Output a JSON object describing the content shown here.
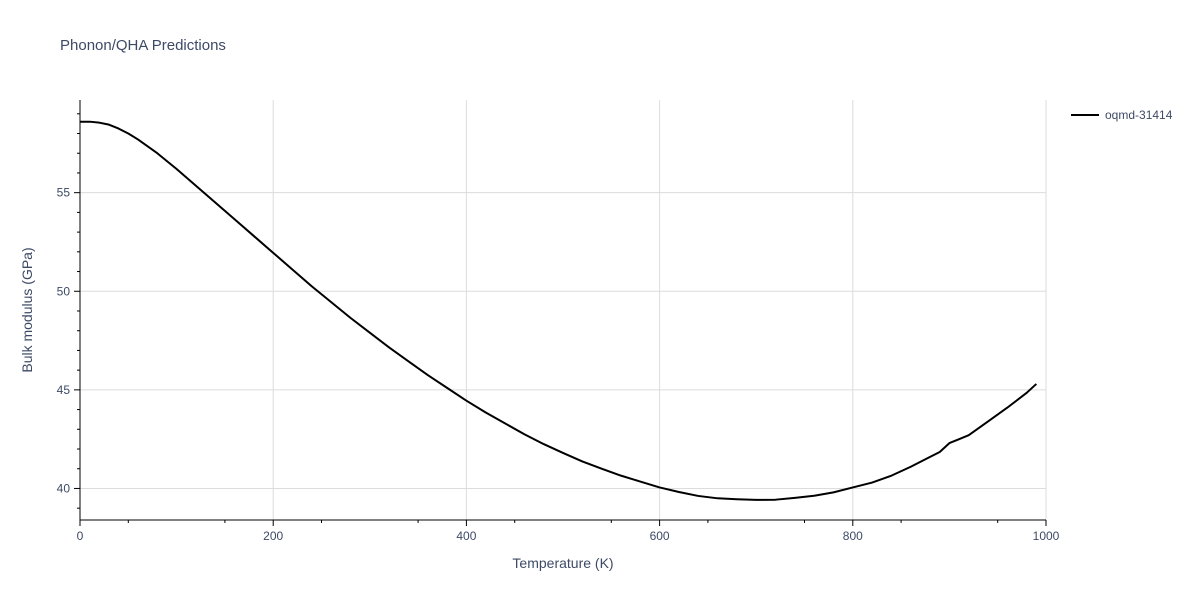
{
  "chart_data": {
    "type": "line",
    "title": "Phonon/QHA Predictions",
    "xlabel": "Temperature (K)",
    "ylabel": "Bulk modulus (GPa)",
    "xlim": [
      0,
      1000
    ],
    "ylim": [
      38.4,
      59.7
    ],
    "x_ticks": [
      0,
      200,
      400,
      600,
      800,
      1000
    ],
    "x_tick_labels": [
      "0",
      "200",
      "400",
      "600",
      "800",
      "1000"
    ],
    "y_ticks": [
      40,
      45,
      50,
      55
    ],
    "y_tick_labels": [
      "40",
      "45",
      "50",
      "55"
    ],
    "grid": true,
    "legend_position": "top-right",
    "series": [
      {
        "name": "oqmd-31414",
        "color": "#000000",
        "x": [
          0,
          10,
          20,
          30,
          40,
          50,
          60,
          80,
          100,
          120,
          140,
          160,
          180,
          200,
          220,
          240,
          260,
          280,
          300,
          320,
          340,
          360,
          380,
          400,
          420,
          440,
          460,
          480,
          500,
          520,
          540,
          560,
          580,
          600,
          620,
          640,
          660,
          680,
          700,
          720,
          740,
          760,
          780,
          800,
          820,
          840,
          860,
          880,
          890,
          900,
          910,
          920,
          930,
          940,
          960,
          980,
          990
        ],
        "y": [
          58.6,
          58.6,
          58.55,
          58.45,
          58.25,
          58.0,
          57.7,
          57.0,
          56.2,
          55.35,
          54.5,
          53.65,
          52.8,
          51.95,
          51.1,
          50.25,
          49.45,
          48.65,
          47.9,
          47.15,
          46.45,
          45.75,
          45.1,
          44.45,
          43.85,
          43.3,
          42.75,
          42.25,
          41.8,
          41.37,
          41.0,
          40.65,
          40.35,
          40.05,
          39.82,
          39.62,
          39.5,
          39.45,
          39.42,
          39.43,
          39.52,
          39.63,
          39.8,
          40.05,
          40.3,
          40.65,
          41.1,
          41.6,
          41.85,
          42.3,
          42.5,
          42.7,
          43.05,
          43.4,
          44.1,
          44.85,
          45.3
        ]
      }
    ]
  }
}
